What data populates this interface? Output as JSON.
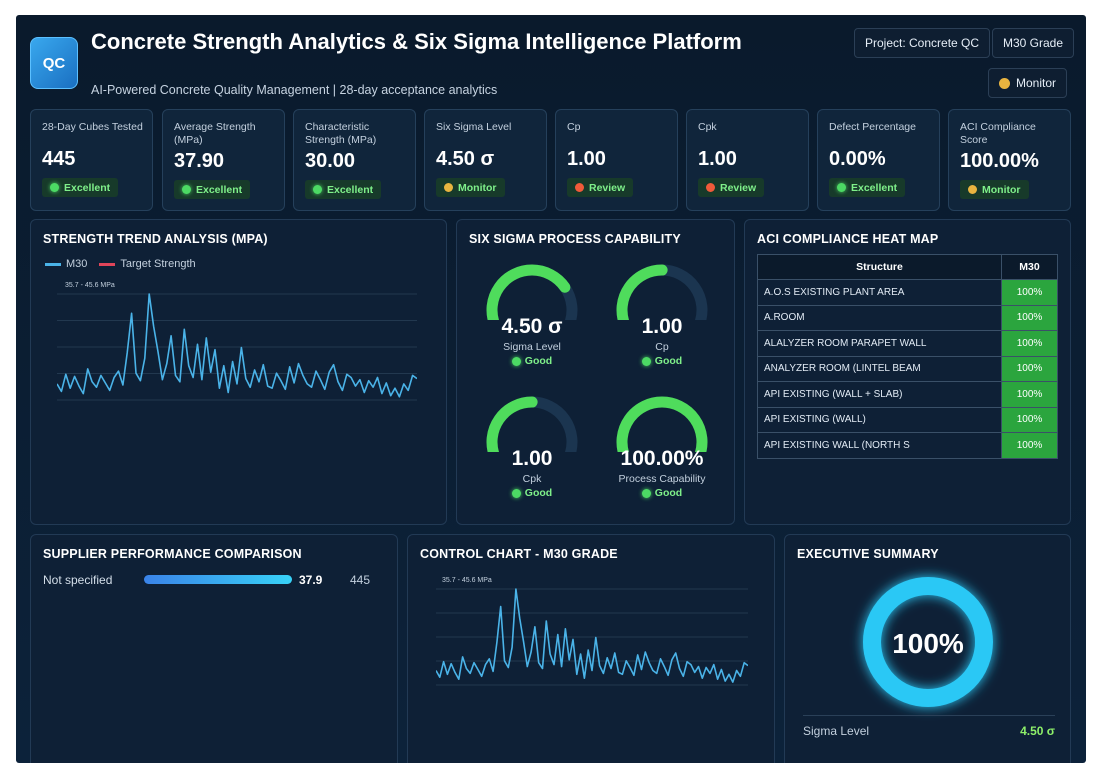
{
  "header": {
    "logo_text": "QC",
    "title": "Concrete Strength Analytics & Six Sigma Intelligence Platform",
    "subtitle": "AI-Powered Concrete Quality Management | 28-day acceptance analytics",
    "project_label": "Project: Concrete QC",
    "grade_label": "M30 Grade",
    "status_label": "Monitor",
    "status_color": "#e8b440"
  },
  "kpis": [
    {
      "label": "28-Day Cubes Tested",
      "value": "445",
      "status": "Excellent",
      "status_color": "green"
    },
    {
      "label": "Average Strength (MPa)",
      "value": "37.90",
      "status": "Excellent",
      "status_color": "green"
    },
    {
      "label": "Characteristic Strength (MPa)",
      "value": "30.00",
      "status": "Excellent",
      "status_color": "green"
    },
    {
      "label": "Six Sigma Level",
      "value": "4.50 σ",
      "status": "Monitor",
      "status_color": "yellow"
    },
    {
      "label": "Cp",
      "value": "1.00",
      "status": "Review",
      "status_color": "red"
    },
    {
      "label": "Cpk",
      "value": "1.00",
      "status": "Review",
      "status_color": "red"
    },
    {
      "label": "Defect Percentage",
      "value": "0.00%",
      "status": "Excellent",
      "status_color": "green"
    },
    {
      "label": "ACI Compliance Score",
      "value": "100.00%",
      "status": "Monitor",
      "status_color": "yellow"
    }
  ],
  "trend": {
    "title": "STRENGTH TREND ANALYSIS (MPA)",
    "legend_series": "M30",
    "legend_target": "Target Strength",
    "range_label": "35.7 - 45.6 MPa",
    "series_color": "#4ab3e8",
    "target_color": "#e0455a"
  },
  "capability": {
    "title": "SIX SIGMA PROCESS CAPABILITY",
    "gauges": [
      {
        "value": "4.50 σ",
        "label": "Sigma Level",
        "status": "Good",
        "fill": 0.75
      },
      {
        "value": "1.00",
        "label": "Cp",
        "status": "Good",
        "fill": 0.5
      },
      {
        "value": "1.00",
        "label": "Cpk",
        "status": "Good",
        "fill": 0.5
      },
      {
        "value": "100.00%",
        "label": "Process Capability",
        "status": "Good",
        "fill": 1.0
      }
    ]
  },
  "heatmap": {
    "title": "ACI COMPLIANCE HEAT MAP",
    "col_structure": "Structure",
    "col_grade": "M30",
    "rows": [
      {
        "structure": "A.O.S EXISTING PLANT AREA",
        "value": "100%"
      },
      {
        "structure": "A.ROOM",
        "value": "100%"
      },
      {
        "structure": "ALALYZER ROOM PARAPET WALL",
        "value": "100%"
      },
      {
        "structure": "ANALYZER ROOM (LINTEL BEAM",
        "value": "100%"
      },
      {
        "structure": "API EXISTING (WALL + SLAB)",
        "value": "100%"
      },
      {
        "structure": "API EXISTING (WALL)",
        "value": "100%"
      },
      {
        "structure": "API EXISTING WALL (NORTH S",
        "value": "100%"
      }
    ]
  },
  "supplier": {
    "title": "SUPPLIER PERFORMANCE COMPARISON",
    "rows": [
      {
        "name": "Not specified",
        "value": "37.9",
        "count": "445"
      }
    ]
  },
  "control": {
    "title": "CONTROL CHART - M30 GRADE",
    "range_label": "35.7 - 45.6 MPa"
  },
  "summary": {
    "title": "EXECUTIVE SUMMARY",
    "donut_value": "100%",
    "donut_fraction": 1.0,
    "row_label": "Sigma Level",
    "row_value": "4.50 σ"
  },
  "chart_data": {
    "type": "line",
    "series": [
      {
        "name": "M30",
        "values": [
          37.2,
          36.5,
          38.1,
          36.8,
          37.9,
          37.0,
          36.3,
          38.6,
          37.4,
          36.9,
          38.0,
          37.3,
          36.6,
          37.8,
          38.4,
          37.1,
          40.1,
          43.8,
          38.2,
          37.5,
          39.6,
          45.6,
          42.6,
          40.2,
          37.6,
          39.1,
          41.7,
          38.0,
          37.4,
          42.3,
          38.9,
          37.8,
          40.9,
          37.6,
          41.5,
          38.3,
          40.4,
          36.8,
          38.9,
          36.4,
          39.3,
          37.2,
          40.6,
          37.7,
          36.9,
          38.5,
          37.4,
          39.0,
          37.0,
          36.8,
          38.2,
          37.5,
          36.7,
          38.8,
          37.3,
          39.1,
          38.0,
          37.2,
          36.9,
          38.4,
          37.6,
          36.7,
          38.3,
          39.0,
          37.4,
          36.6,
          38.1,
          37.8,
          37.0,
          37.6,
          36.4,
          37.5,
          36.9,
          37.8,
          36.3,
          37.3,
          36.1,
          36.8,
          36.0,
          37.2,
          36.6,
          38.0,
          37.7
        ]
      }
    ],
    "ylim": [
      35.7,
      45.6
    ],
    "grid": true,
    "legend": "top-left"
  }
}
